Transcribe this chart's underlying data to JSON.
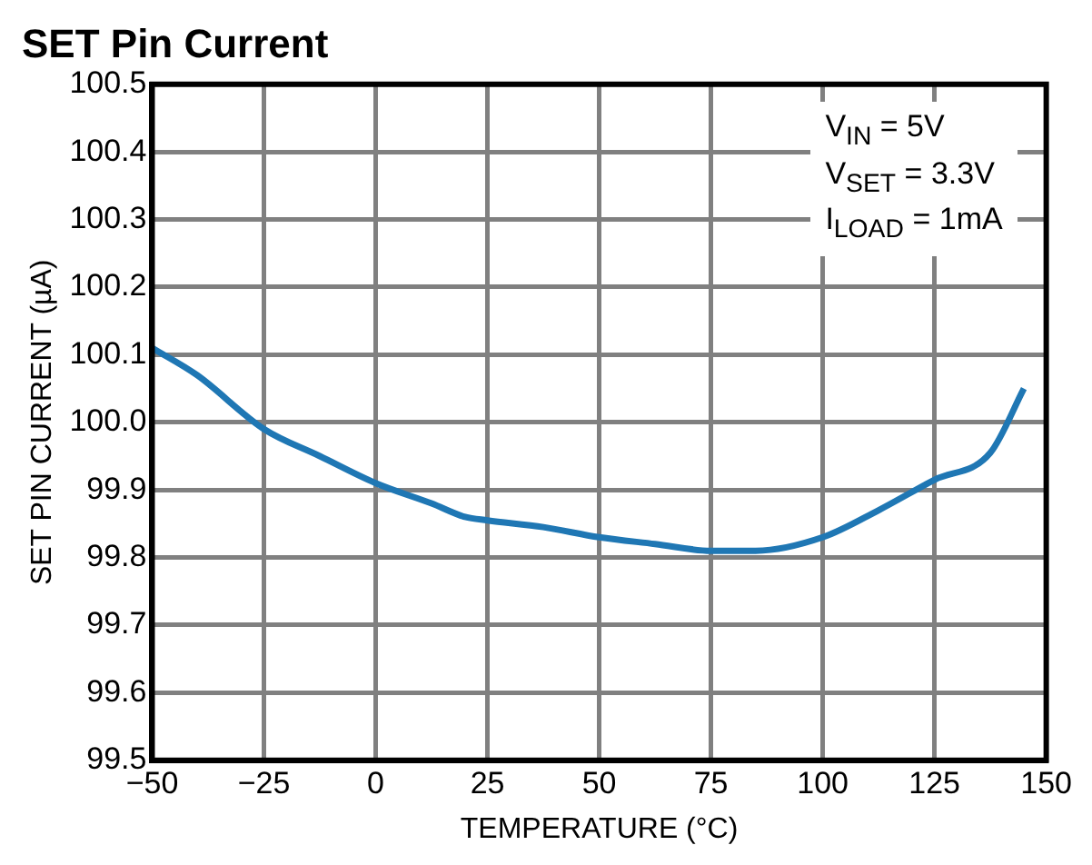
{
  "chart_data": {
    "type": "line",
    "title": "SET Pin Current",
    "xlabel": "TEMPERATURE (°C)",
    "ylabel": "SET PIN CURRENT (µA)",
    "annotations": [
      "V$_{IN}$ = 5V",
      "V$_{SET}$ = 3.3V",
      "I$_{LOAD}$ = 1mA"
    ],
    "series": [
      {
        "color": "#1f77b4",
        "x": [
          -50,
          -40,
          -25,
          -12.5,
          0,
          12.5,
          20,
          25,
          37.5,
          50,
          62.5,
          75,
          85,
          100,
          112.5,
          125,
          137.5,
          145
        ],
        "values": [
          100.11,
          100.07,
          99.99,
          99.95,
          99.91,
          99.88,
          99.86,
          99.855,
          99.845,
          99.83,
          99.82,
          99.81,
          99.81,
          99.83,
          99.87,
          99.915,
          99.955,
          100.05
        ]
      }
    ],
    "xlim": [
      -50,
      150
    ],
    "xticks": [
      {
        "value": -50,
        "label": "−50"
      },
      {
        "value": -25,
        "label": "−25"
      },
      0,
      25,
      50,
      75,
      100,
      125,
      150
    ],
    "ylim": [
      99.5,
      100.5
    ],
    "yticks": [
      99.5,
      99.6,
      99.7,
      99.8,
      99.9,
      {
        "value": 100,
        "label": "100.0"
      },
      100.1,
      100.2,
      100.3,
      100.4,
      100.5
    ],
    "grid": true,
    "legend": false,
    "marker": "none",
    "line_style": "solid"
  }
}
